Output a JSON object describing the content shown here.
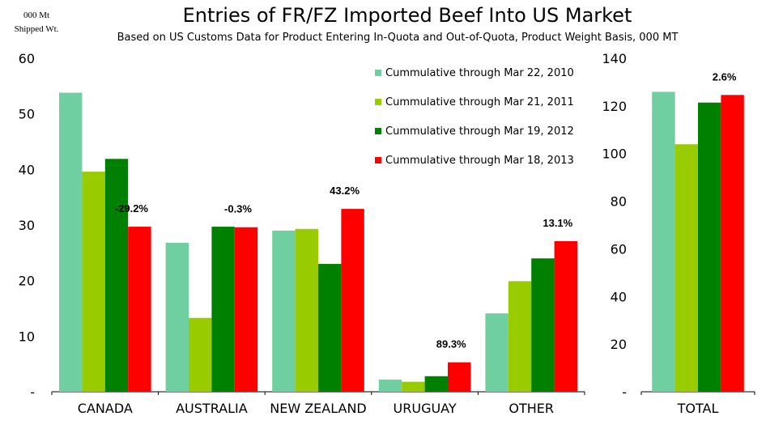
{
  "title": "Entries of FR/FZ Imported Beef Into US Market",
  "subtitle": "Based on US Customs Data for Product Entering In-Quota and Out-of-Quota, Product Weight Basis, 000 MT",
  "ylabel_line1": "000 Mt",
  "ylabel_line2": "Shipped Wt.",
  "colors": {
    "s2010": "#6FCFA0",
    "s2011": "#99CC00",
    "s2012": "#008000",
    "s2013": "#FF0000"
  },
  "chart_data": [
    {
      "type": "bar",
      "categories": [
        "CANADA",
        "AUSTRALIA",
        "NEW ZEALAND",
        "URUGUAY",
        "OTHER"
      ],
      "ylim": [
        0,
        60
      ],
      "yticks": [
        "-",
        "10",
        "20",
        "30",
        "40",
        "50",
        "60"
      ],
      "legend_position": "top-right",
      "series": [
        {
          "name": "Cummulative through Mar 22, 2010",
          "values": [
            53.8,
            26.8,
            29.0,
            2.2,
            14.1
          ]
        },
        {
          "name": "Cummulative through Mar 21, 2011",
          "values": [
            39.6,
            13.3,
            29.3,
            1.8,
            19.9
          ]
        },
        {
          "name": "Cummulative through Mar 19, 2012",
          "values": [
            41.9,
            29.7,
            23.0,
            2.8,
            24.0
          ]
        },
        {
          "name": "Cummulative through Mar 18, 2013",
          "values": [
            29.7,
            29.6,
            32.9,
            5.3,
            27.1
          ]
        }
      ],
      "annotations": [
        "-29.2%",
        "-0.3%",
        "43.2%",
        "89.3%",
        "13.1%"
      ]
    },
    {
      "type": "bar",
      "categories": [
        "TOTAL"
      ],
      "ylim": [
        0,
        140
      ],
      "yticks": [
        "-",
        "20",
        "40",
        "60",
        "80",
        "100",
        "120",
        "140"
      ],
      "series": [
        {
          "name": "Cummulative through Mar 22, 2010",
          "values": [
            125.9
          ]
        },
        {
          "name": "Cummulative through Mar 21, 2011",
          "values": [
            103.9
          ]
        },
        {
          "name": "Cummulative through Mar 19, 2012",
          "values": [
            121.4
          ]
        },
        {
          "name": "Cummulative through Mar 18, 2013",
          "values": [
            124.6
          ]
        }
      ],
      "annotations": [
        "2.6%"
      ]
    }
  ]
}
